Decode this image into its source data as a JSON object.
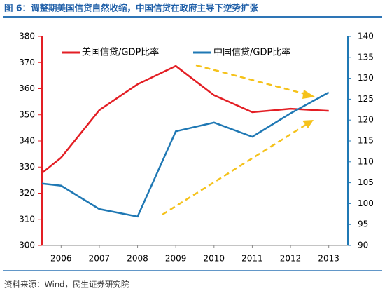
{
  "title": "图 6：调整期美国信贷自然收缩，中国信贷在政府主导下逆势扩张",
  "source": "资料来源：Wind，民生证券研究院",
  "chart_data": {
    "type": "line",
    "x": [
      2005.5,
      2006,
      2007,
      2008,
      2009,
      2010,
      2011,
      2012,
      2013
    ],
    "xlim": [
      2005.5,
      2013.5
    ],
    "xticks": [
      2006,
      2007,
      2008,
      2009,
      2010,
      2011,
      2012,
      2013
    ],
    "ylim": [
      300,
      380
    ],
    "yticks": [
      300,
      310,
      320,
      330,
      340,
      350,
      360,
      370,
      380
    ],
    "y2lim": [
      90,
      140
    ],
    "y2ticks": [
      90,
      95,
      100,
      105,
      110,
      115,
      120,
      125,
      130,
      135,
      140
    ],
    "series": [
      {
        "name": "美国信贷/GDP比率",
        "color": "#e31e24",
        "values": [
          327.7,
          333.6,
          351.8,
          361.7,
          368.7,
          357.5,
          351,
          352.3,
          351.5
        ]
      },
      {
        "name": "中国信贷/GDP比率",
        "color": "#1f78b4",
        "axis": "y2",
        "values": [
          104.8,
          104.3,
          98.7,
          96.9,
          117.3,
          119.4,
          116,
          121.6,
          126.6
        ]
      }
    ]
  }
}
